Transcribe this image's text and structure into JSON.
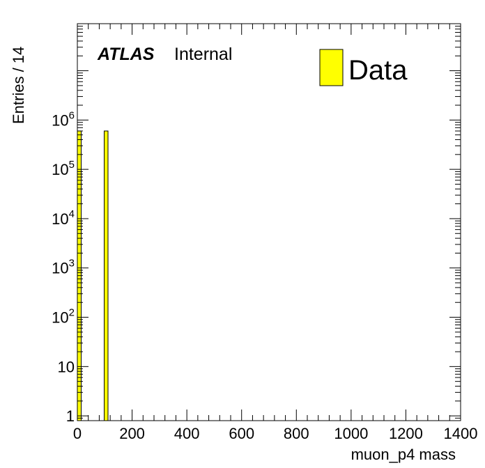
{
  "chart_data": {
    "type": "bar",
    "xlabel": "muon_p4 mass",
    "ylabel": "Entries / 14",
    "x_scale": "linear",
    "y_scale": "log",
    "xlim": [
      0,
      1400
    ],
    "ylim": [
      0.8,
      90000000
    ],
    "x_ticks": [
      0,
      200,
      400,
      600,
      800,
      1000,
      1200,
      1400
    ],
    "y_ticks": [
      {
        "value": 1,
        "base": "1",
        "exp": ""
      },
      {
        "value": 10,
        "base": "10",
        "exp": ""
      },
      {
        "value": 100,
        "base": "10",
        "exp": "2"
      },
      {
        "value": 1000,
        "base": "10",
        "exp": "3"
      },
      {
        "value": 10000,
        "base": "10",
        "exp": "4"
      },
      {
        "value": 100000,
        "base": "10",
        "exp": "5"
      },
      {
        "value": 1000000,
        "base": "10",
        "exp": "6"
      }
    ],
    "bin_width": 14,
    "series": [
      {
        "name": "Data",
        "color": "#ffff00",
        "edge_color": "#000000",
        "bins": [
          {
            "x_low": 0,
            "x_high": 14,
            "value": 600000
          },
          {
            "x_low": 98,
            "x_high": 112,
            "value": 600000
          }
        ]
      }
    ],
    "labels": {
      "experiment": "ATLAS",
      "status": "Internal"
    },
    "legend": {
      "entries": [
        "Data"
      ],
      "placement": "top-right"
    },
    "grid": false
  }
}
